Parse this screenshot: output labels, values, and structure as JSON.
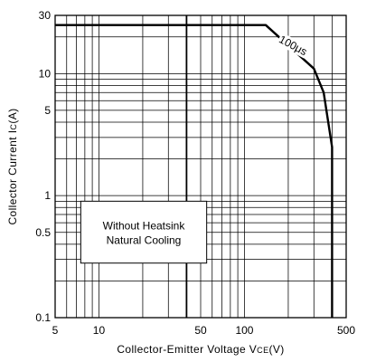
{
  "chart_data": {
    "type": "line",
    "title": "",
    "xlabel": "Collector-Emitter Voltage VCE(V)",
    "ylabel": "Collector Current IC(A)",
    "xlabel_parts": {
      "main": "Collector-Emitter Voltage V",
      "sub": "CE",
      "unit": "(V)"
    },
    "ylabel_parts": {
      "main": "Collector Current I",
      "sub": "C",
      "unit": "(A)"
    },
    "x_scale": "log",
    "y_scale": "log",
    "xlim": [
      5,
      500
    ],
    "ylim": [
      0.1,
      30
    ],
    "grid": true,
    "x_ticks": [
      {
        "value": 5,
        "label": "5"
      },
      {
        "value": 10,
        "label": "10"
      },
      {
        "value": 50,
        "label": "50"
      },
      {
        "value": 100,
        "label": "100"
      },
      {
        "value": 500,
        "label": "500"
      }
    ],
    "y_ticks": [
      {
        "value": 0.1,
        "label": "0.1"
      },
      {
        "value": 0.5,
        "label": "0.5"
      },
      {
        "value": 1,
        "label": "1"
      },
      {
        "value": 5,
        "label": "5"
      },
      {
        "value": 10,
        "label": "10"
      },
      {
        "value": 30,
        "label": "30"
      }
    ],
    "x_grid": [
      6,
      7,
      8,
      9,
      10,
      20,
      30,
      40,
      50,
      60,
      70,
      80,
      90,
      100,
      200,
      300,
      400
    ],
    "y_grid": [
      0.2,
      0.3,
      0.4,
      0.5,
      0.6,
      0.7,
      0.8,
      0.9,
      1,
      2,
      3,
      4,
      5,
      6,
      7,
      8,
      9,
      10,
      20
    ],
    "emphasis_lines": [
      {
        "axis": "x",
        "value": 40
      }
    ],
    "series": [
      {
        "name": "100μs",
        "points": [
          {
            "x": 5,
            "y": 25
          },
          {
            "x": 140,
            "y": 25
          },
          {
            "x": 300,
            "y": 11
          },
          {
            "x": 350,
            "y": 7
          },
          {
            "x": 400,
            "y": 2.5
          },
          {
            "x": 400,
            "y": 0.1
          }
        ]
      }
    ],
    "annotations": [
      {
        "text": "100μs",
        "x": 210,
        "y": 16
      }
    ],
    "note_box": {
      "lines": [
        "Without Heatsink",
        "Natural Cooling"
      ],
      "x_range": [
        7.5,
        55
      ],
      "y_range": [
        0.28,
        0.9
      ]
    }
  }
}
